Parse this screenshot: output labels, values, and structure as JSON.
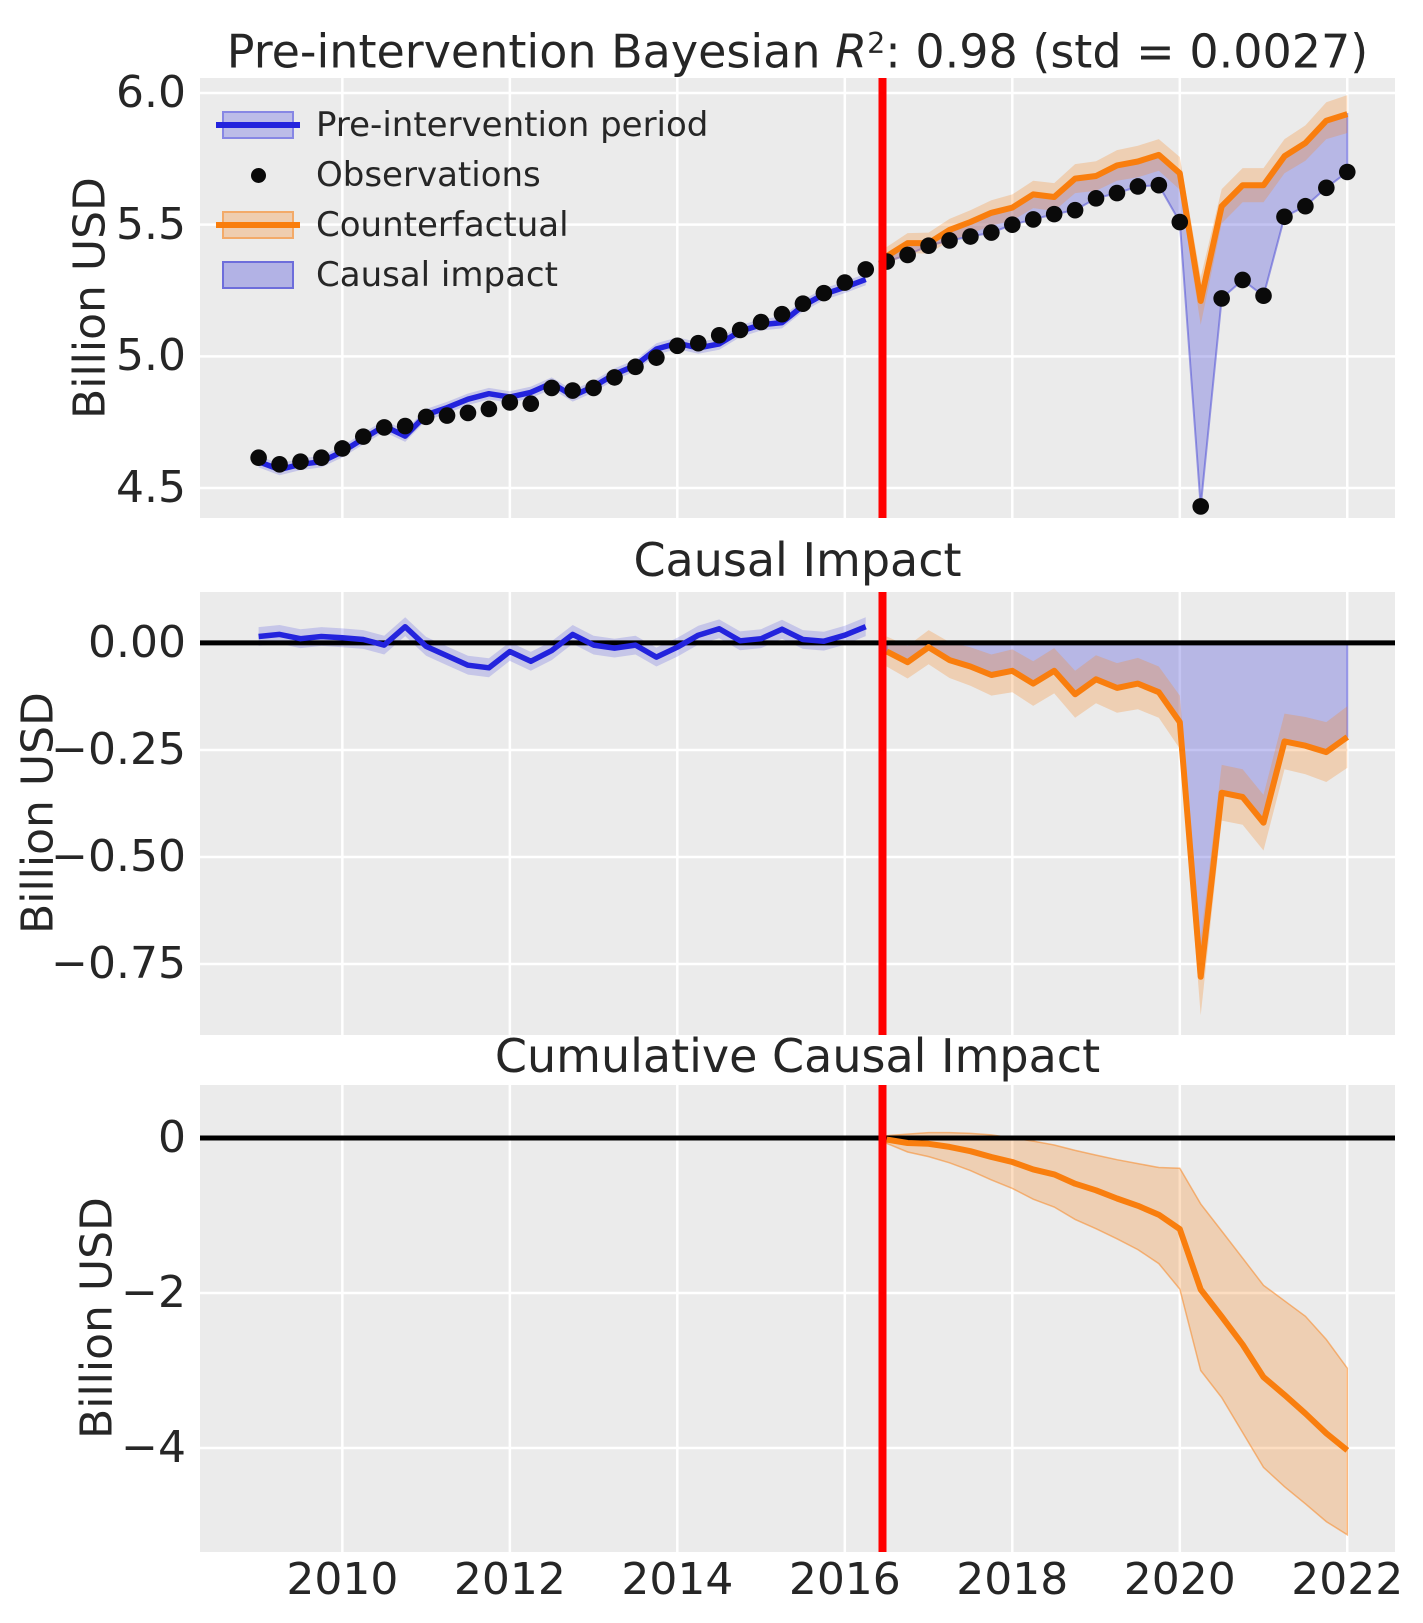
{
  "figure": {
    "panel_bg": "#ebebeb",
    "grid_color": "#ffffff",
    "text_color": "#262626"
  },
  "colors": {
    "blue_line": "#2323dd",
    "blue_band": "rgba(70,70,225,0.22)",
    "impact_fill": "rgba(100,100,222,0.38)",
    "impact_edge": "rgba(80,80,215,0.55)",
    "orange_line": "#f97e0e",
    "orange_band": "rgba(248,135,35,0.28)",
    "observation": "#0a0a0a",
    "intervention_red": "#ff0000",
    "zero_black": "#000000"
  },
  "titles": {
    "top": {
      "prefix": "Pre-intervention Bayesian ",
      "rvar": "R",
      "sup": "2",
      "suffix": ": 0.98 (std = 0.0027)"
    },
    "middle": "Causal Impact",
    "bottom": "Cumulative Causal Impact"
  },
  "legend": {
    "items": [
      {
        "label": "Pre-intervention period",
        "swatch": "blue-band-line"
      },
      {
        "label": "Observations",
        "swatch": "black-dot"
      },
      {
        "label": "Counterfactual",
        "swatch": "orange-band-line"
      },
      {
        "label": "Causal impact",
        "swatch": "blue-patch"
      }
    ]
  },
  "axes": {
    "xlim": [
      2008.3,
      2022.57
    ],
    "xticks": [
      2010,
      2012,
      2014,
      2016,
      2018,
      2020,
      2022
    ],
    "xtick_labels": [
      "2010",
      "2012",
      "2014",
      "2016",
      "2018",
      "2020",
      "2022"
    ],
    "intervention_x": 2016.45
  },
  "chart_data": [
    {
      "id": "top",
      "type": "line",
      "ylabel": "Billion USD",
      "ylim": [
        4.386,
        6.057
      ],
      "yticks": [
        4.5,
        5.0,
        5.5,
        6.0
      ],
      "ytick_labels": [
        "4.5",
        "5.0",
        "5.5",
        "6.0"
      ],
      "t_pre": [
        2009.0,
        2009.25,
        2009.5,
        2009.75,
        2010.0,
        2010.25,
        2010.5,
        2010.75,
        2011.0,
        2011.25,
        2011.5,
        2011.75,
        2012.0,
        2012.25,
        2012.5,
        2012.75,
        2013.0,
        2013.25,
        2013.5,
        2013.75,
        2014.0,
        2014.25,
        2014.5,
        2014.75,
        2015.0,
        2015.25,
        2015.5,
        2015.75,
        2016.0,
        2016.25
      ],
      "observed_pre": [
        4.615,
        4.59,
        4.6,
        4.615,
        4.65,
        4.695,
        4.73,
        4.735,
        4.77,
        4.775,
        4.785,
        4.8,
        4.825,
        4.82,
        4.88,
        4.87,
        4.88,
        4.92,
        4.96,
        4.995,
        5.04,
        5.05,
        5.08,
        5.1,
        5.13,
        5.16,
        5.2,
        5.24,
        5.28,
        5.33
      ],
      "fitted_pre": [
        4.6,
        4.57,
        4.59,
        4.6,
        4.638,
        4.687,
        4.735,
        4.697,
        4.778,
        4.805,
        4.837,
        4.858,
        4.845,
        4.863,
        4.898,
        4.85,
        4.885,
        4.932,
        4.965,
        5.028,
        5.05,
        5.032,
        5.047,
        5.095,
        5.12,
        5.128,
        5.192,
        5.236,
        5.262,
        5.292
      ],
      "fitted_band_halfwidth": 0.022,
      "t_post": [
        2016.5,
        2016.75,
        2017.0,
        2017.25,
        2017.5,
        2017.75,
        2018.0,
        2018.25,
        2018.5,
        2018.75,
        2019.0,
        2019.25,
        2019.5,
        2019.75,
        2020.0,
        2020.25,
        2020.5,
        2020.75,
        2021.0,
        2021.25,
        2021.5,
        2021.75,
        2022.0
      ],
      "observed_post": [
        5.36,
        5.385,
        5.42,
        5.44,
        5.455,
        5.47,
        5.5,
        5.52,
        5.54,
        5.555,
        5.6,
        5.62,
        5.645,
        5.65,
        5.51,
        4.43,
        5.22,
        5.29,
        5.23,
        5.53,
        5.57,
        5.64,
        5.7
      ],
      "counterfactual": [
        5.38,
        5.43,
        5.43,
        5.48,
        5.51,
        5.545,
        5.565,
        5.615,
        5.605,
        5.675,
        5.685,
        5.725,
        5.74,
        5.765,
        5.695,
        5.21,
        5.57,
        5.65,
        5.65,
        5.76,
        5.81,
        5.895,
        5.92
      ],
      "counterfactual_band_halfwidth": [
        0.035,
        0.038,
        0.04,
        0.042,
        0.045,
        0.048,
        0.05,
        0.052,
        0.053,
        0.055,
        0.056,
        0.058,
        0.06,
        0.06,
        0.062,
        0.09,
        0.065,
        0.065,
        0.065,
        0.065,
        0.067,
        0.07,
        0.072
      ]
    },
    {
      "id": "middle",
      "type": "line",
      "ylabel": "Billion USD",
      "ylim": [
        -0.916,
        0.119
      ],
      "yticks": [
        0.0,
        -0.25,
        -0.5,
        -0.75
      ],
      "ytick_labels": [
        "0.00",
        "−0.25",
        "−0.50",
        "−0.75"
      ],
      "impact_pre": [
        0.015,
        0.02,
        0.01,
        0.015,
        0.012,
        0.008,
        -0.005,
        0.038,
        -0.008,
        -0.03,
        -0.052,
        -0.058,
        -0.02,
        -0.043,
        -0.018,
        0.02,
        -0.005,
        -0.012,
        -0.005,
        -0.033,
        -0.01,
        0.018,
        0.033,
        0.005,
        0.01,
        0.032,
        0.008,
        0.004,
        0.018,
        0.038
      ],
      "impact_post": [
        -0.02,
        -0.045,
        -0.01,
        -0.04,
        -0.055,
        -0.075,
        -0.065,
        -0.095,
        -0.065,
        -0.12,
        -0.085,
        -0.105,
        -0.095,
        -0.115,
        -0.185,
        -0.78,
        -0.35,
        -0.36,
        -0.42,
        -0.23,
        -0.24,
        -0.255,
        -0.22
      ],
      "impact_pre_band_halfwidth": 0.022,
      "impact_post_band_halfwidth": [
        0.035,
        0.038,
        0.04,
        0.042,
        0.045,
        0.048,
        0.05,
        0.052,
        0.053,
        0.055,
        0.056,
        0.058,
        0.06,
        0.06,
        0.062,
        0.09,
        0.065,
        0.065,
        0.065,
        0.065,
        0.067,
        0.07,
        0.072
      ]
    },
    {
      "id": "bottom",
      "type": "line",
      "ylabel": "Billion USD",
      "ylim": [
        -5.342,
        0.684
      ],
      "yticks": [
        0,
        -2,
        -4
      ],
      "ytick_labels": [
        "0",
        "−2",
        "−4"
      ],
      "cumulative": [
        -0.02,
        -0.065,
        -0.075,
        -0.115,
        -0.17,
        -0.245,
        -0.31,
        -0.405,
        -0.47,
        -0.59,
        -0.675,
        -0.78,
        -0.875,
        -0.99,
        -1.175,
        -1.955,
        -2.305,
        -2.665,
        -3.085,
        -3.315,
        -3.555,
        -3.81,
        -4.03
      ],
      "cumulative_upper": [
        0.03,
        0.05,
        0.07,
        0.07,
        0.06,
        0.04,
        0.0,
        -0.04,
        -0.09,
        -0.16,
        -0.22,
        -0.28,
        -0.33,
        -0.38,
        -0.39,
        -0.85,
        -1.2,
        -1.55,
        -1.9,
        -2.1,
        -2.3,
        -2.6,
        -2.97
      ],
      "cumulative_lower": [
        -0.07,
        -0.18,
        -0.24,
        -0.32,
        -0.42,
        -0.54,
        -0.65,
        -0.79,
        -0.89,
        -1.05,
        -1.17,
        -1.3,
        -1.44,
        -1.62,
        -1.95,
        -3.0,
        -3.35,
        -3.8,
        -4.25,
        -4.5,
        -4.72,
        -4.95,
        -5.12
      ]
    }
  ]
}
